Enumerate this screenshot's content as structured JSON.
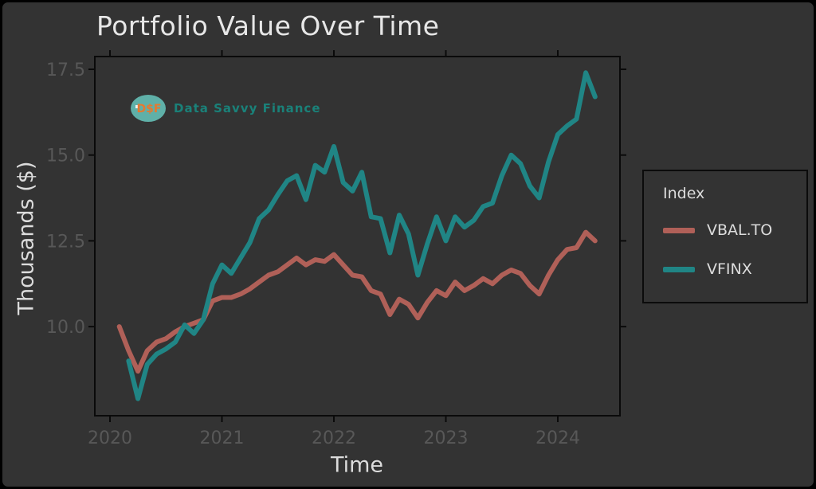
{
  "title": "Portfolio Value Over Time",
  "watermark": {
    "logo_text": "D$F",
    "brand": "Data Savvy Finance",
    "logo_fill": "#5fb0a8",
    "logo_text_color": "#e8782e",
    "brand_color": "#1a8179"
  },
  "colors": {
    "background": "#333333",
    "spine": "#0a0a0a",
    "title_text": "#e7e7e7",
    "axis_label_text": "#dcdcdc",
    "tick_text": "#585858"
  },
  "legend": {
    "title": "Index",
    "items": [
      {
        "label": "VBAL.TO",
        "color": "#b06058"
      },
      {
        "label": "VFINX",
        "color": "#208585"
      }
    ]
  },
  "chart_data": {
    "type": "line",
    "title": "Portfolio Value Over Time",
    "xlabel": "Time",
    "ylabel": "Thousands ($)",
    "x_unit": "month-end, months indexed from 2020-01 = 1",
    "xlim_years": [
      2019.87,
      2024.53
    ],
    "ylim": [
      7.4,
      17.9
    ],
    "grid": false,
    "legend_position": "right",
    "x_ticks": [
      {
        "label": "2020",
        "year": 2020
      },
      {
        "label": "2021",
        "year": 2021
      },
      {
        "label": "2022",
        "year": 2022
      },
      {
        "label": "2023",
        "year": 2023
      },
      {
        "label": "2024",
        "year": 2024
      }
    ],
    "y_ticks": [
      {
        "label": "10.0",
        "value": 10.0
      },
      {
        "label": "12.5",
        "value": 12.5
      },
      {
        "label": "15.0",
        "value": 15.0
      },
      {
        "label": "17.5",
        "value": 17.5
      }
    ],
    "series": [
      {
        "name": "VBAL.TO",
        "color": "#b06058",
        "start_month": 1,
        "start_date": "2020-01",
        "end_date": "2024-04",
        "values": [
          10.0,
          9.3,
          8.7,
          9.3,
          9.55,
          9.65,
          9.85,
          10.0,
          10.1,
          10.2,
          10.75,
          10.85,
          10.85,
          10.95,
          11.1,
          11.3,
          11.5,
          11.6,
          11.8,
          12.0,
          11.8,
          11.95,
          11.9,
          12.1,
          11.8,
          11.5,
          11.45,
          11.05,
          10.95,
          10.35,
          10.8,
          10.65,
          10.25,
          10.7,
          11.05,
          10.9,
          11.3,
          11.05,
          11.2,
          11.4,
          11.25,
          11.5,
          11.65,
          11.55,
          11.2,
          10.95,
          11.5,
          11.95,
          12.25,
          12.3,
          12.75,
          12.5
        ]
      },
      {
        "name": "VFINX",
        "color": "#208585",
        "start_month": 2,
        "start_date": "2020-02",
        "end_date": "2024-04",
        "values": [
          9.0,
          7.9,
          8.9,
          9.2,
          9.35,
          9.55,
          10.05,
          9.8,
          10.2,
          11.25,
          11.8,
          11.55,
          12.0,
          12.45,
          13.15,
          13.4,
          13.85,
          14.25,
          14.4,
          13.7,
          14.7,
          14.5,
          15.25,
          14.2,
          13.95,
          14.5,
          13.2,
          13.15,
          12.15,
          13.25,
          12.7,
          11.5,
          12.4,
          13.2,
          12.5,
          13.2,
          12.9,
          13.1,
          13.5,
          13.6,
          14.4,
          15.0,
          14.75,
          14.1,
          13.75,
          14.8,
          15.6,
          15.85,
          16.05,
          17.4,
          16.7
        ]
      }
    ]
  }
}
